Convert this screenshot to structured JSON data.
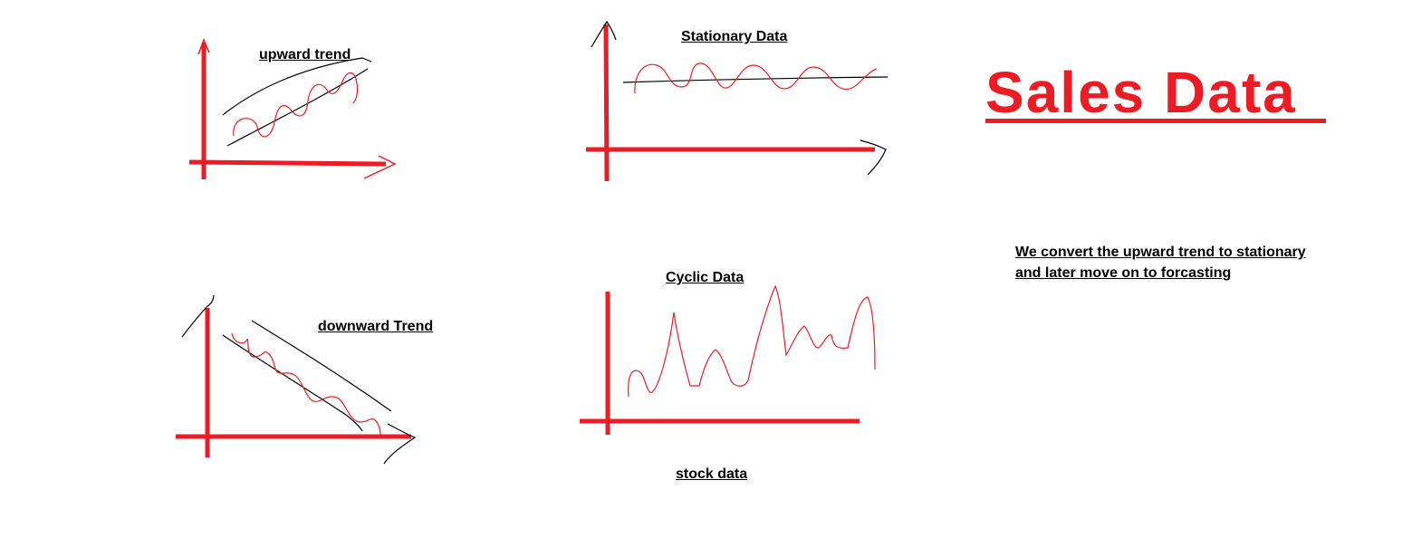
{
  "title": "Sales Data",
  "colors": {
    "accent": "#ed1c24",
    "text": "#000000",
    "background": "#ffffff"
  },
  "panels": {
    "upward": {
      "label": "upward trend"
    },
    "stationary": {
      "label": "Stationary Data"
    },
    "downward": {
      "label": "downward Trend"
    },
    "cyclic": {
      "label": "Cyclic Data",
      "caption": "stock data"
    }
  },
  "note": {
    "line1": "We convert the upward trend to stationary",
    "line2": "and later move on to forcasting"
  }
}
